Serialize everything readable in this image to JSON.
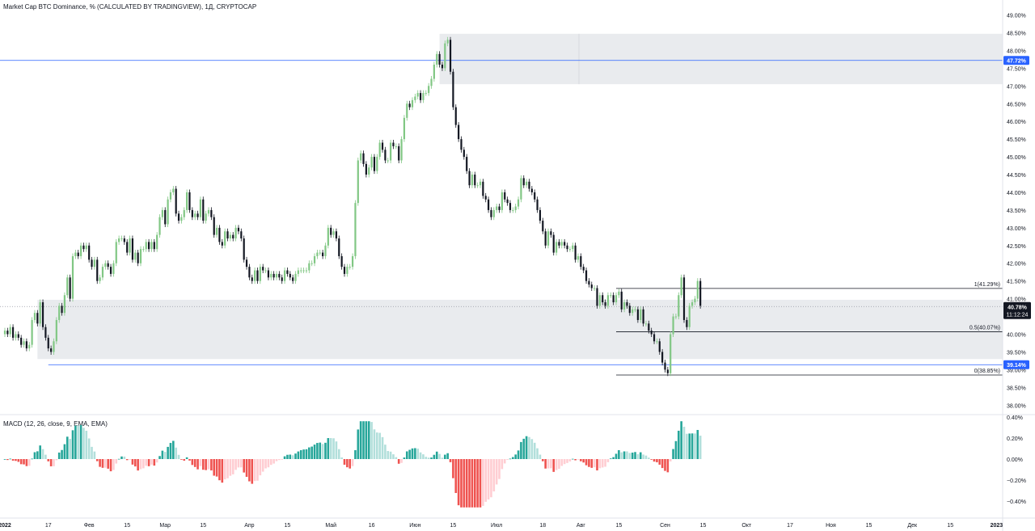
{
  "header": {
    "title": "Market Cap BTC Dominance, % (CALCULATED BY TRADINGVIEW), 1Д, CRYPTOCAP"
  },
  "macd": {
    "title": "MACD (12, 26, close, 9, EMA, EMA)"
  },
  "colors": {
    "up": "#81c784",
    "down": "#131722",
    "hist_pos_strong": "#26a69a",
    "hist_pos_weak": "#b2dfdb",
    "hist_neg_strong": "#ef5350",
    "hist_neg_weak": "#ffcdd2",
    "zone": "#e9ebee",
    "blue_line": "#2962ff",
    "price_label_bg": "#131722"
  },
  "chart_data": [
    {
      "type": "candlestick",
      "ylim": [
        37.75,
        49.25
      ],
      "y_ticks": [
        "38.00%",
        "38.50%",
        "39.00%",
        "39.50%",
        "40.00%",
        "40.50%",
        "41.00%",
        "41.50%",
        "42.00%",
        "42.50%",
        "43.00%",
        "43.50%",
        "44.00%",
        "44.50%",
        "45.00%",
        "45.50%",
        "46.00%",
        "46.50%",
        "47.00%",
        "47.50%",
        "48.00%",
        "48.50%",
        "49.00%"
      ],
      "y_tick_values": [
        38,
        38.5,
        39,
        39.5,
        40,
        40.5,
        41,
        41.5,
        42,
        42.5,
        43,
        43.5,
        44,
        44.5,
        45,
        45.5,
        46,
        46.5,
        47,
        47.5,
        48,
        48.5,
        49
      ],
      "x_ticks": [
        {
          "label": "2022",
          "day": 0
        },
        {
          "label": "17",
          "day": 16
        },
        {
          "label": "Фев",
          "day": 31
        },
        {
          "label": "15",
          "day": 45
        },
        {
          "label": "Мар",
          "day": 59
        },
        {
          "label": "15",
          "day": 73
        },
        {
          "label": "Апр",
          "day": 90
        },
        {
          "label": "15",
          "day": 104
        },
        {
          "label": "Май",
          "day": 120
        },
        {
          "label": "16",
          "day": 135
        },
        {
          "label": "Июн",
          "day": 151
        },
        {
          "label": "15",
          "day": 165
        },
        {
          "label": "Июл",
          "day": 181
        },
        {
          "label": "18",
          "day": 198
        },
        {
          "label": "Авг",
          "day": 212
        },
        {
          "label": "15",
          "day": 226
        },
        {
          "label": "Сен",
          "day": 243
        },
        {
          "label": "15",
          "day": 257
        },
        {
          "label": "Окт",
          "day": 273
        },
        {
          "label": "17",
          "day": 289
        },
        {
          "label": "Ноя",
          "day": 304
        },
        {
          "label": "15",
          "day": 318
        },
        {
          "label": "Дек",
          "day": 334
        },
        {
          "label": "15",
          "day": 348
        },
        {
          "label": "2023",
          "day": 365
        }
      ],
      "close_series": [
        40.1,
        40.0,
        40.2,
        39.9,
        40.0,
        39.9,
        39.7,
        39.8,
        39.6,
        39.7,
        40.4,
        40.6,
        40.3,
        40.9,
        40.2,
        39.9,
        39.6,
        39.5,
        39.8,
        40.4,
        40.8,
        40.6,
        41.1,
        41.6,
        41.0,
        42.2,
        42.3,
        42.2,
        42.5,
        42.4,
        42.5,
        42.1,
        41.9,
        42.1,
        41.5,
        41.6,
        41.9,
        42.0,
        41.9,
        41.7,
        42.0,
        42.6,
        42.7,
        42.7,
        42.6,
        42.3,
        42.7,
        42.1,
        42.3,
        42.0,
        42.4,
        42.4,
        42.6,
        42.4,
        42.6,
        42.4,
        42.8,
        43.3,
        43.5,
        43.1,
        43.8,
        44.0,
        44.1,
        43.4,
        43.2,
        43.3,
        43.5,
        44.0,
        43.5,
        43.3,
        43.4,
        43.3,
        43.8,
        43.2,
        43.4,
        43.5,
        43.3,
        42.8,
        43.0,
        42.6,
        42.5,
        42.9,
        42.7,
        42.8,
        42.7,
        43.0,
        42.9,
        42.7,
        42.1,
        41.9,
        41.6,
        41.5,
        41.8,
        41.5,
        41.9,
        41.8,
        41.8,
        41.6,
        41.7,
        41.6,
        41.7,
        41.6,
        41.5,
        41.8,
        41.7,
        41.6,
        41.5,
        41.7,
        41.8,
        41.8,
        41.8,
        41.8,
        42.0,
        42.0,
        42.2,
        42.3,
        42.3,
        42.2,
        42.5,
        43.0,
        42.8,
        42.9,
        42.7,
        42.2,
        41.9,
        41.7,
        41.9,
        41.9,
        42.2,
        43.7,
        44.9,
        45.1,
        44.8,
        44.5,
        44.7,
        45.0,
        44.6,
        45.0,
        45.4,
        45.2,
        44.9,
        44.9,
        45.4,
        45.3,
        45.3,
        44.9,
        45.5,
        46.1,
        46.5,
        46.4,
        46.6,
        46.7,
        46.8,
        46.6,
        46.8,
        46.8,
        47.0,
        47.2,
        47.6,
        47.9,
        47.6,
        47.5,
        48.2,
        48.3,
        47.4,
        46.4,
        45.9,
        45.5,
        45.2,
        45.0,
        44.6,
        44.2,
        44.5,
        44.2,
        44.2,
        44.3,
        43.9,
        43.8,
        43.5,
        43.3,
        43.5,
        43.6,
        43.5,
        44.0,
        43.8,
        43.7,
        43.5,
        43.5,
        43.6,
        43.8,
        44.4,
        44.2,
        44.3,
        44.1,
        44.0,
        43.8,
        43.5,
        43.2,
        42.9,
        42.5,
        42.9,
        42.8,
        42.3,
        42.6,
        42.5,
        42.6,
        42.5,
        42.4,
        42.4,
        42.5,
        42.1,
        42.2,
        41.9,
        41.8,
        41.5,
        41.4,
        41.3,
        41.3,
        40.8,
        41.1,
        40.9,
        40.8,
        41.1,
        41.1,
        40.9,
        41.1,
        41.2,
        40.7,
        40.9,
        40.8,
        40.6,
        40.7,
        40.7,
        40.4,
        40.7,
        40.3,
        40.3,
        40.1,
        40.0,
        39.8,
        39.8,
        39.5,
        39.2,
        39.0,
        38.9,
        40.0,
        40.5,
        40.5,
        41.1,
        41.6,
        40.4,
        40.2,
        40.8,
        40.9,
        41.0,
        41.5,
        40.8
      ],
      "annotations": {
        "fib": [
          {
            "label": "1(41.29%)",
            "value": 41.29
          },
          {
            "label": "0.5(40.07%)",
            "value": 40.07
          },
          {
            "label": "0(38.85%)",
            "value": 38.85
          }
        ],
        "price_labels": [
          {
            "text": "47.72%",
            "value": 47.72
          },
          {
            "text": "39.14%",
            "value": 39.14
          }
        ],
        "current_price": "40.78%",
        "countdown": "11:12:24",
        "current_value": 40.78,
        "zones": [
          {
            "from": 47.05,
            "to": 48.47
          },
          {
            "from": 39.3,
            "to": 40.97
          }
        ]
      }
    },
    {
      "type": "bar",
      "name": "MACD (12, 26, close, 9, EMA, EMA)",
      "ylim": [
        -0.5,
        0.4
      ],
      "y_ticks": [
        "0.40%",
        "0.20%",
        "0.00%",
        "−0.20%",
        "−0.40%"
      ],
      "y_tick_values": [
        0.4,
        0.2,
        0,
        -0.2,
        -0.4
      ]
    }
  ]
}
